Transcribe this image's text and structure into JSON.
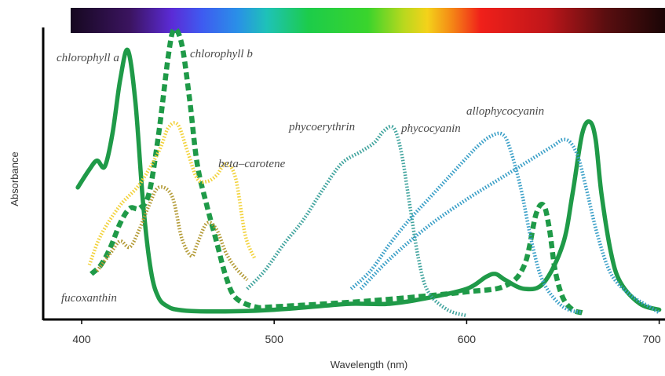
{
  "chart_data": {
    "type": "line",
    "title": "",
    "xlabel": "Wavelength  (nm)",
    "ylabel": "Absorbance",
    "xlim": [
      380,
      700
    ],
    "ylim": [
      0,
      1
    ],
    "x_ticks": [
      400,
      500,
      600,
      700
    ],
    "x_tick_labels": [
      "400",
      "500",
      "600",
      "700"
    ],
    "y_ticks_shown": false,
    "grid": false,
    "legend": "inline labels",
    "spectrum_bar": true,
    "series": [
      {
        "name": "chlorophyll a",
        "label": "chlorophyll a",
        "color": "#1f9a48",
        "style": "solid",
        "x": [
          398,
          404,
          408,
          412,
          416,
          420,
          424,
          428,
          432,
          436,
          440,
          445,
          450,
          460,
          480,
          500,
          520,
          540,
          560,
          580,
          600,
          610,
          615,
          620,
          630,
          640,
          650,
          655,
          660,
          664,
          667,
          670,
          675,
          680,
          690,
          700
        ],
        "y": [
          0.44,
          0.5,
          0.53,
          0.51,
          0.62,
          0.8,
          0.9,
          0.72,
          0.38,
          0.16,
          0.07,
          0.04,
          0.03,
          0.025,
          0.025,
          0.03,
          0.04,
          0.05,
          0.05,
          0.07,
          0.1,
          0.14,
          0.15,
          0.13,
          0.1,
          0.12,
          0.25,
          0.42,
          0.62,
          0.66,
          0.6,
          0.42,
          0.22,
          0.12,
          0.05,
          0.03
        ]
      },
      {
        "name": "chlorophyll b",
        "label": "chlorophyll b",
        "color": "#1f9a48",
        "style": "dashed",
        "x": [
          405,
          410,
          415,
          420,
          425,
          430,
          435,
          440,
          445,
          448,
          452,
          456,
          460,
          465,
          470,
          475,
          480,
          490,
          500,
          550,
          600,
          620,
          630,
          636,
          640,
          643,
          646,
          650,
          655,
          660
        ],
        "y": [
          0.15,
          0.18,
          0.24,
          0.32,
          0.37,
          0.37,
          0.42,
          0.62,
          0.88,
          0.97,
          0.92,
          0.74,
          0.52,
          0.38,
          0.26,
          0.14,
          0.07,
          0.04,
          0.04,
          0.06,
          0.09,
          0.11,
          0.18,
          0.35,
          0.38,
          0.3,
          0.16,
          0.07,
          0.03,
          0.02
        ]
      },
      {
        "name": "beta-carotene",
        "label": "beta–carotene",
        "color": "#f2d23c",
        "style": "dotted",
        "x": [
          404,
          410,
          420,
          430,
          440,
          445,
          450,
          455,
          460,
          465,
          470,
          475,
          480,
          485,
          490
        ],
        "y": [
          0.18,
          0.28,
          0.38,
          0.45,
          0.56,
          0.64,
          0.65,
          0.56,
          0.47,
          0.46,
          0.48,
          0.52,
          0.47,
          0.28,
          0.2
        ]
      },
      {
        "name": "fucoxanthin",
        "label": "fucoxanthin",
        "color": "#b39a35",
        "style": "dotted",
        "x": [
          408,
          415,
          420,
          425,
          430,
          435,
          440,
          447,
          452,
          457,
          460,
          465,
          470,
          475,
          480,
          486
        ],
        "y": [
          0.16,
          0.22,
          0.26,
          0.24,
          0.3,
          0.38,
          0.44,
          0.41,
          0.27,
          0.21,
          0.25,
          0.32,
          0.3,
          0.22,
          0.17,
          0.13
        ]
      },
      {
        "name": "phycoerythrin",
        "label": "phycoerythrin",
        "color": "#3fa39d",
        "style": "dotted",
        "x": [
          486,
          495,
          505,
          515,
          525,
          535,
          545,
          552,
          557,
          562,
          566,
          570,
          575,
          580,
          590,
          600
        ],
        "y": [
          0.1,
          0.16,
          0.25,
          0.33,
          0.43,
          0.52,
          0.56,
          0.59,
          0.63,
          0.64,
          0.56,
          0.4,
          0.2,
          0.09,
          0.03,
          0.01
        ]
      },
      {
        "name": "phycocyanin",
        "label": "phycocyanin",
        "color": "#3a9fc7",
        "style": "dotted",
        "x": [
          540,
          550,
          560,
          570,
          580,
          590,
          600,
          606,
          612,
          618,
          622,
          628,
          634,
          640,
          650,
          660
        ],
        "y": [
          0.1,
          0.16,
          0.25,
          0.33,
          0.4,
          0.47,
          0.54,
          0.58,
          0.61,
          0.62,
          0.58,
          0.44,
          0.25,
          0.12,
          0.04,
          0.02
        ]
      },
      {
        "name": "allophycocyanin",
        "label": "allophycocyanin",
        "color": "#3a9fc7",
        "style": "dotted",
        "x": [
          545,
          560,
          580,
          600,
          620,
          635,
          645,
          650,
          654,
          658,
          662,
          668,
          675,
          685,
          695,
          700
        ],
        "y": [
          0.1,
          0.2,
          0.31,
          0.4,
          0.48,
          0.54,
          0.58,
          0.6,
          0.59,
          0.54,
          0.44,
          0.28,
          0.15,
          0.08,
          0.04,
          0.02
        ]
      }
    ]
  }
}
